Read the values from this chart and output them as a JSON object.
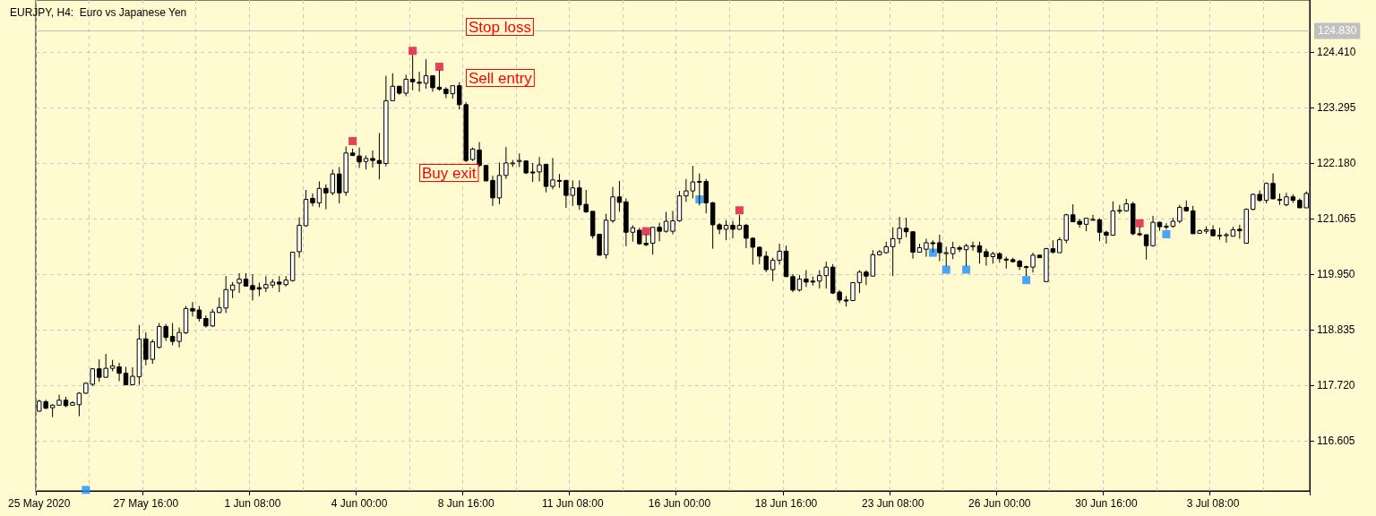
{
  "chart_data": {
    "type": "candlestick",
    "title": "EURJPY, H4:  Euro vs Japanese Yen",
    "categories": [
      "25 May 2020",
      null,
      null,
      null,
      null,
      null,
      null,
      null,
      null,
      null,
      null,
      null,
      null,
      null,
      null,
      null,
      "27 May 16:00",
      null,
      null,
      null,
      null,
      null,
      null,
      null,
      null,
      null,
      null,
      null,
      null,
      null,
      null,
      null,
      "1 Jun 08:00",
      null,
      null,
      null,
      null,
      null,
      null,
      null,
      null,
      null,
      null,
      null,
      null,
      null,
      null,
      null,
      "4 Jun 00:00",
      null,
      null,
      null,
      null,
      null,
      null,
      null,
      null,
      null,
      null,
      null,
      null,
      null,
      null,
      null,
      "8 Jun 16:00",
      null,
      null,
      null,
      null,
      null,
      null,
      null,
      null,
      null,
      null,
      null,
      null,
      null,
      null,
      null,
      "11 Jun 08:00",
      null,
      null,
      null,
      null,
      null,
      null,
      null,
      null,
      null,
      null,
      null,
      null,
      null,
      null,
      null,
      "16 Jun 00:00",
      null,
      null,
      null,
      null,
      null,
      null,
      null,
      null,
      null,
      null,
      null,
      null,
      null,
      null,
      null,
      "18 Jun 16:00",
      null,
      null,
      null,
      null,
      null,
      null,
      null,
      null,
      null,
      null,
      null,
      null,
      null,
      null,
      null,
      "23 Jun 08:00",
      null,
      null,
      null,
      null,
      null,
      null,
      null,
      null,
      null,
      null,
      null,
      null,
      null,
      null,
      null,
      "26 Jun 00:00",
      null,
      null,
      null,
      null,
      null,
      null,
      null,
      null,
      null,
      null,
      null,
      null,
      null,
      null,
      null,
      "30 Jun 16:00",
      null,
      null,
      null,
      null,
      null,
      null,
      null,
      null,
      null,
      null,
      null,
      null,
      null,
      null,
      null,
      "3 Jul 08:00",
      null,
      null,
      null,
      null,
      null,
      null,
      null,
      null,
      null,
      null,
      null,
      null,
      null,
      null
    ],
    "series": [
      {
        "type": "candlestick",
        "color": "#000000",
        "ohlc": [
          [
            117.2,
            117.43,
            117.19,
            117.4
          ],
          [
            117.39,
            117.43,
            117.24,
            117.26
          ],
          [
            117.27,
            117.34,
            117.08,
            117.32
          ],
          [
            117.32,
            117.53,
            117.32,
            117.42
          ],
          [
            117.42,
            117.49,
            117.28,
            117.31
          ],
          [
            117.32,
            117.4,
            117.32,
            117.37
          ],
          [
            117.33,
            117.58,
            117.1,
            117.56
          ],
          [
            117.56,
            117.78,
            117.55,
            117.76
          ],
          [
            117.74,
            118.06,
            117.7,
            118.05
          ],
          [
            118.05,
            118.24,
            117.79,
            117.88
          ],
          [
            117.88,
            118.35,
            117.87,
            118.06
          ],
          [
            118.06,
            118.23,
            118.0,
            118.11
          ],
          [
            118.09,
            118.17,
            117.8,
            117.96
          ],
          [
            117.96,
            118.09,
            117.72,
            117.73
          ],
          [
            117.73,
            118.08,
            117.72,
            117.9
          ],
          [
            117.89,
            118.93,
            117.73,
            118.65
          ],
          [
            118.65,
            118.78,
            118.12,
            118.24
          ],
          [
            118.24,
            118.64,
            118.15,
            118.59
          ],
          [
            118.48,
            118.97,
            118.46,
            118.9
          ],
          [
            118.9,
            118.95,
            118.61,
            118.68
          ],
          [
            118.7,
            118.97,
            118.52,
            118.6
          ],
          [
            118.6,
            118.88,
            118.48,
            118.78
          ],
          [
            118.77,
            119.31,
            118.75,
            119.26
          ],
          [
            119.26,
            119.39,
            119.1,
            119.21
          ],
          [
            119.23,
            119.31,
            119.0,
            119.06
          ],
          [
            119.06,
            119.12,
            118.88,
            118.91
          ],
          [
            118.91,
            119.25,
            118.89,
            119.19
          ],
          [
            119.18,
            119.48,
            119.17,
            119.28
          ],
          [
            119.27,
            119.91,
            119.17,
            119.64
          ],
          [
            119.63,
            119.79,
            119.47,
            119.73
          ],
          [
            119.77,
            119.97,
            119.57,
            119.85
          ],
          [
            119.85,
            119.97,
            119.71,
            119.71
          ],
          [
            119.72,
            119.95,
            119.42,
            119.64
          ],
          [
            119.68,
            119.78,
            119.51,
            119.65
          ],
          [
            119.67,
            119.91,
            119.59,
            119.74
          ],
          [
            119.73,
            119.85,
            119.67,
            119.79
          ],
          [
            119.79,
            119.91,
            119.59,
            119.75
          ],
          [
            119.74,
            119.91,
            119.7,
            119.83
          ],
          [
            119.82,
            120.4,
            119.8,
            120.39
          ],
          [
            120.4,
            121.09,
            120.28,
            120.93
          ],
          [
            120.92,
            121.64,
            120.9,
            121.45
          ],
          [
            121.47,
            121.57,
            121.31,
            121.38
          ],
          [
            121.38,
            121.81,
            121.29,
            121.67
          ],
          [
            121.67,
            121.75,
            121.25,
            121.58
          ],
          [
            121.58,
            122.05,
            121.53,
            121.96
          ],
          [
            121.96,
            122.1,
            121.37,
            121.58
          ],
          [
            121.59,
            122.51,
            121.52,
            122.38
          ],
          [
            122.38,
            122.47,
            122.32,
            122.33
          ],
          [
            122.32,
            122.49,
            122.08,
            122.2
          ],
          [
            122.21,
            122.33,
            122.05,
            122.27
          ],
          [
            122.27,
            122.43,
            122.09,
            122.23
          ],
          [
            122.23,
            122.78,
            121.85,
            122.17
          ],
          [
            122.17,
            123.93,
            122.11,
            123.43
          ],
          [
            123.43,
            123.98,
            123.43,
            123.72
          ],
          [
            123.72,
            123.72,
            123.55,
            123.58
          ],
          [
            123.58,
            123.95,
            123.52,
            123.86
          ],
          [
            123.86,
            124.35,
            123.64,
            123.81
          ],
          [
            123.8,
            124.01,
            123.61,
            123.78
          ],
          [
            123.78,
            124.26,
            123.67,
            123.93
          ],
          [
            123.93,
            123.93,
            123.61,
            123.69
          ],
          [
            123.7,
            124.04,
            123.63,
            123.66
          ],
          [
            123.66,
            123.7,
            123.48,
            123.57
          ],
          [
            123.57,
            123.73,
            123.47,
            123.73
          ],
          [
            123.73,
            123.8,
            123.25,
            123.35
          ],
          [
            123.35,
            123.4,
            122.2,
            122.23
          ],
          [
            122.25,
            122.49,
            122.22,
            122.46
          ],
          [
            122.44,
            122.6,
            122.1,
            122.13
          ],
          [
            122.13,
            122.14,
            121.82,
            121.82
          ],
          [
            121.83,
            121.92,
            121.32,
            121.48
          ],
          [
            121.48,
            122.19,
            121.35,
            121.93
          ],
          [
            121.93,
            122.5,
            121.86,
            122.18
          ],
          [
            122.17,
            122.24,
            122.1,
            122.18
          ],
          [
            122.21,
            122.37,
            122.1,
            122.23
          ],
          [
            122.22,
            122.22,
            121.96,
            121.98
          ],
          [
            122.0,
            122.18,
            121.8,
            121.98
          ],
          [
            122.0,
            122.3,
            121.81,
            122.14
          ],
          [
            122.15,
            122.16,
            121.59,
            121.71
          ],
          [
            121.71,
            122.28,
            121.65,
            121.84
          ],
          [
            121.83,
            121.96,
            121.68,
            121.82
          ],
          [
            121.83,
            121.84,
            121.28,
            121.53
          ],
          [
            121.53,
            121.83,
            121.32,
            121.68
          ],
          [
            121.68,
            121.83,
            121.24,
            121.34
          ],
          [
            121.35,
            121.64,
            121.18,
            121.2
          ],
          [
            121.21,
            121.21,
            120.66,
            120.72
          ],
          [
            120.75,
            120.75,
            120.32,
            120.33
          ],
          [
            120.34,
            121.16,
            120.26,
            121.03
          ],
          [
            121.02,
            121.7,
            120.98,
            121.5
          ],
          [
            121.5,
            121.82,
            121.2,
            121.39
          ],
          [
            121.4,
            121.47,
            120.51,
            120.79
          ],
          [
            120.79,
            120.93,
            120.6,
            120.88
          ],
          [
            120.83,
            120.88,
            120.54,
            120.56
          ],
          [
            120.57,
            120.75,
            120.51,
            120.54
          ],
          [
            120.57,
            120.9,
            120.34,
            120.89
          ],
          [
            120.89,
            120.98,
            120.61,
            120.81
          ],
          [
            120.81,
            121.2,
            120.78,
            121.01
          ],
          [
            120.81,
            121.22,
            120.75,
            121.02
          ],
          [
            121.02,
            121.62,
            121.0,
            121.52
          ],
          [
            121.52,
            121.86,
            121.4,
            121.62
          ],
          [
            121.62,
            122.12,
            121.47,
            121.8
          ],
          [
            121.8,
            121.97,
            121.33,
            121.81
          ],
          [
            121.81,
            121.86,
            121.17,
            121.38
          ],
          [
            121.38,
            121.4,
            120.46,
            120.94
          ],
          [
            120.94,
            120.97,
            120.75,
            120.85
          ],
          [
            120.85,
            121.03,
            120.63,
            120.93
          ],
          [
            120.93,
            121.02,
            120.67,
            120.85
          ],
          [
            120.85,
            121.14,
            120.84,
            120.93
          ],
          [
            120.93,
            120.96,
            120.47,
            120.67
          ],
          [
            120.67,
            120.69,
            120.14,
            120.49
          ],
          [
            120.49,
            120.5,
            120.15,
            120.31
          ],
          [
            120.31,
            120.41,
            119.99,
            120.04
          ],
          [
            120.04,
            120.28,
            119.81,
            120.23
          ],
          [
            120.23,
            120.56,
            120.14,
            120.41
          ],
          [
            120.41,
            120.52,
            119.9,
            119.9
          ],
          [
            119.9,
            119.95,
            119.59,
            119.63
          ],
          [
            119.63,
            119.93,
            119.6,
            119.85
          ],
          [
            119.85,
            120.03,
            119.69,
            119.79
          ],
          [
            119.81,
            119.9,
            119.72,
            119.79
          ],
          [
            119.81,
            120.03,
            119.66,
            119.92
          ],
          [
            119.92,
            120.2,
            119.66,
            120.09
          ],
          [
            120.09,
            120.15,
            119.55,
            119.57
          ],
          [
            119.59,
            119.63,
            119.37,
            119.43
          ],
          [
            119.43,
            119.51,
            119.3,
            119.41
          ],
          [
            119.42,
            119.79,
            119.42,
            119.78
          ],
          [
            119.78,
            120.03,
            119.57,
            119.99
          ],
          [
            119.99,
            120.03,
            119.73,
            119.91
          ],
          [
            119.91,
            120.43,
            119.91,
            120.34
          ],
          [
            120.34,
            120.43,
            120.32,
            120.4
          ],
          [
            120.38,
            120.6,
            120.36,
            120.5
          ],
          [
            120.5,
            120.89,
            119.91,
            120.66
          ],
          [
            120.66,
            121.1,
            120.56,
            120.87
          ],
          [
            120.87,
            121.08,
            120.69,
            120.8
          ],
          [
            120.8,
            120.8,
            120.26,
            120.39
          ],
          [
            120.39,
            120.56,
            120.39,
            120.48
          ],
          [
            120.45,
            120.66,
            120.3,
            120.58
          ],
          [
            120.58,
            120.63,
            120.39,
            120.56
          ],
          [
            120.58,
            120.74,
            120.21,
            120.38
          ],
          [
            120.37,
            120.5,
            120.11,
            120.38
          ],
          [
            120.36,
            120.6,
            120.25,
            120.48
          ],
          [
            120.48,
            120.52,
            120.39,
            120.45
          ],
          [
            120.44,
            120.56,
            120.11,
            120.52
          ],
          [
            120.51,
            120.6,
            120.42,
            120.52
          ],
          [
            120.52,
            120.6,
            120.16,
            120.39
          ],
          [
            120.4,
            120.46,
            120.12,
            120.3
          ],
          [
            120.3,
            120.4,
            120.16,
            120.36
          ],
          [
            120.36,
            120.39,
            120.18,
            120.26
          ],
          [
            120.25,
            120.3,
            120.06,
            120.24
          ],
          [
            120.24,
            120.28,
            120.18,
            120.2
          ],
          [
            120.21,
            120.24,
            120.03,
            120.1
          ],
          [
            120.1,
            120.12,
            119.91,
            120.09
          ],
          [
            120.09,
            120.38,
            119.98,
            120.33
          ],
          [
            120.33,
            120.34,
            120.28,
            120.28
          ],
          [
            119.8,
            120.48,
            119.8,
            120.46
          ],
          [
            120.46,
            120.63,
            120.36,
            120.39
          ],
          [
            120.38,
            120.69,
            120.38,
            120.64
          ],
          [
            120.63,
            121.16,
            120.57,
            121.14
          ],
          [
            121.14,
            121.35,
            121.0,
            121.0
          ],
          [
            121.01,
            121.06,
            120.88,
            120.95
          ],
          [
            120.95,
            121.08,
            120.81,
            121.07
          ],
          [
            121.04,
            121.14,
            121.02,
            121.05
          ],
          [
            121.04,
            121.07,
            120.61,
            120.79
          ],
          [
            120.79,
            120.82,
            120.56,
            120.73
          ],
          [
            120.73,
            121.41,
            120.72,
            121.22
          ],
          [
            121.22,
            121.34,
            121.16,
            121.23
          ],
          [
            121.22,
            121.46,
            121.2,
            121.36
          ],
          [
            121.36,
            121.4,
            120.73,
            120.76
          ],
          [
            120.76,
            120.9,
            120.71,
            120.74
          ],
          [
            120.74,
            120.74,
            120.24,
            120.52
          ],
          [
            120.52,
            121.12,
            120.5,
            120.99
          ],
          [
            120.99,
            121.0,
            120.82,
            120.9
          ],
          [
            120.9,
            120.97,
            120.84,
            120.91
          ],
          [
            120.91,
            121.08,
            120.88,
            121.01
          ],
          [
            121.01,
            121.34,
            120.97,
            121.29
          ],
          [
            121.29,
            121.43,
            121.2,
            121.22
          ],
          [
            121.22,
            121.32,
            120.76,
            120.76
          ],
          [
            120.77,
            120.85,
            120.76,
            120.82
          ],
          [
            120.81,
            120.91,
            120.76,
            120.84
          ],
          [
            120.84,
            120.93,
            120.72,
            120.72
          ],
          [
            120.72,
            120.88,
            120.64,
            120.73
          ],
          [
            120.73,
            120.78,
            120.58,
            120.74
          ],
          [
            120.71,
            120.9,
            120.71,
            120.84
          ],
          [
            120.85,
            120.94,
            120.66,
            120.82
          ],
          [
            120.57,
            121.27,
            120.57,
            121.25
          ],
          [
            121.25,
            121.57,
            121.23,
            121.55
          ],
          [
            121.55,
            121.63,
            121.4,
            121.43
          ],
          [
            121.43,
            121.79,
            121.37,
            121.77
          ],
          [
            121.77,
            121.97,
            121.46,
            121.46
          ],
          [
            121.45,
            121.57,
            121.34,
            121.44
          ],
          [
            121.34,
            121.58,
            121.31,
            121.5
          ],
          [
            121.5,
            121.55,
            121.38,
            121.43
          ],
          [
            121.43,
            121.47,
            121.28,
            121.28
          ],
          [
            121.28,
            121.61,
            121.28,
            121.57
          ]
        ]
      },
      {
        "type": "scatter",
        "color": "#dc143c",
        "marker": "square",
        "values": [
          null,
          null,
          null,
          null,
          null,
          null,
          null,
          null,
          null,
          null,
          null,
          null,
          null,
          null,
          null,
          null,
          null,
          null,
          null,
          null,
          null,
          null,
          null,
          null,
          null,
          null,
          null,
          null,
          null,
          null,
          null,
          null,
          null,
          null,
          null,
          null,
          null,
          null,
          null,
          null,
          null,
          null,
          null,
          null,
          null,
          null,
          null,
          122.62,
          null,
          null,
          null,
          null,
          null,
          null,
          null,
          null,
          124.43,
          null,
          null,
          null,
          124.11,
          null,
          null,
          null,
          null,
          null,
          null,
          null,
          null,
          null,
          null,
          null,
          null,
          null,
          null,
          null,
          null,
          null,
          null,
          null,
          null,
          null,
          null,
          null,
          null,
          null,
          null,
          null,
          null,
          null,
          null,
          120.81,
          null,
          null,
          null,
          null,
          null,
          null,
          null,
          null,
          null,
          null,
          null,
          null,
          null,
          121.23,
          null,
          null,
          null,
          null,
          null,
          null,
          null,
          null,
          null,
          null,
          null,
          null,
          null,
          null,
          null,
          null,
          null,
          null,
          null,
          null,
          null,
          null,
          null,
          null,
          null,
          null,
          null,
          null,
          null,
          null,
          null,
          null,
          null,
          null,
          null,
          null,
          null,
          null,
          null,
          null,
          null,
          null,
          null,
          null,
          null,
          null,
          null,
          null,
          null,
          null,
          null,
          null,
          null,
          null,
          null,
          null,
          null,
          null,
          null,
          120.97,
          null,
          null,
          null,
          null,
          null,
          null,
          null,
          null,
          null,
          null,
          null,
          null,
          null,
          null,
          null,
          null,
          null,
          null,
          null,
          null,
          null,
          null,
          null,
          null,
          null
        ]
      },
      {
        "type": "scatter",
        "color": "#1e90ff",
        "marker": "square",
        "values": [
          null,
          null,
          null,
          null,
          null,
          null,
          null,
          115.62,
          null,
          null,
          null,
          null,
          null,
          null,
          null,
          null,
          null,
          null,
          null,
          null,
          null,
          null,
          null,
          null,
          null,
          null,
          null,
          null,
          null,
          null,
          null,
          null,
          null,
          null,
          null,
          null,
          null,
          null,
          null,
          null,
          null,
          null,
          null,
          null,
          null,
          null,
          null,
          null,
          null,
          null,
          null,
          null,
          null,
          null,
          null,
          null,
          null,
          null,
          null,
          null,
          null,
          null,
          null,
          null,
          null,
          null,
          null,
          null,
          null,
          null,
          null,
          null,
          null,
          null,
          null,
          null,
          null,
          null,
          null,
          null,
          null,
          null,
          null,
          null,
          null,
          null,
          null,
          null,
          null,
          null,
          null,
          null,
          null,
          null,
          null,
          null,
          null,
          null,
          null,
          121.45,
          null,
          null,
          null,
          null,
          null,
          null,
          null,
          null,
          null,
          null,
          null,
          null,
          null,
          null,
          null,
          null,
          null,
          null,
          null,
          null,
          null,
          null,
          null,
          null,
          null,
          null,
          null,
          null,
          null,
          null,
          null,
          null,
          null,
          null,
          120.38,
          null,
          120.04,
          null,
          null,
          120.04,
          null,
          null,
          null,
          null,
          null,
          null,
          null,
          null,
          119.83,
          null,
          null,
          null,
          null,
          null,
          null,
          null,
          null,
          null,
          null,
          null,
          null,
          null,
          null,
          null,
          null,
          null,
          null,
          null,
          null,
          120.75,
          null,
          null,
          null,
          null,
          null,
          null,
          null,
          null,
          null,
          null,
          null,
          null,
          null,
          null,
          null,
          null,
          null,
          null,
          null,
          null,
          null
        ]
      }
    ],
    "ylim": [
      115.6,
      125.45
    ],
    "yticks": [
      {
        "value": 116.605,
        "label": "116.605"
      },
      {
        "value": 117.72,
        "label": "117.720"
      },
      {
        "value": 118.835,
        "label": "118.835"
      },
      {
        "value": 119.95,
        "label": "119.950"
      },
      {
        "value": 121.065,
        "label": "121.065"
      },
      {
        "value": 122.18,
        "label": "122.180"
      },
      {
        "value": 123.295,
        "label": "123.295"
      },
      {
        "value": 124.41,
        "label": "124.410"
      }
    ],
    "grid": true,
    "ref_lines": [
      {
        "axis": "y",
        "value": 124.83,
        "label": "124.830",
        "color": "#c0c0c0"
      }
    ],
    "annotations": [
      "Stop loss",
      "Sell entry",
      "Buy exit"
    ]
  }
}
